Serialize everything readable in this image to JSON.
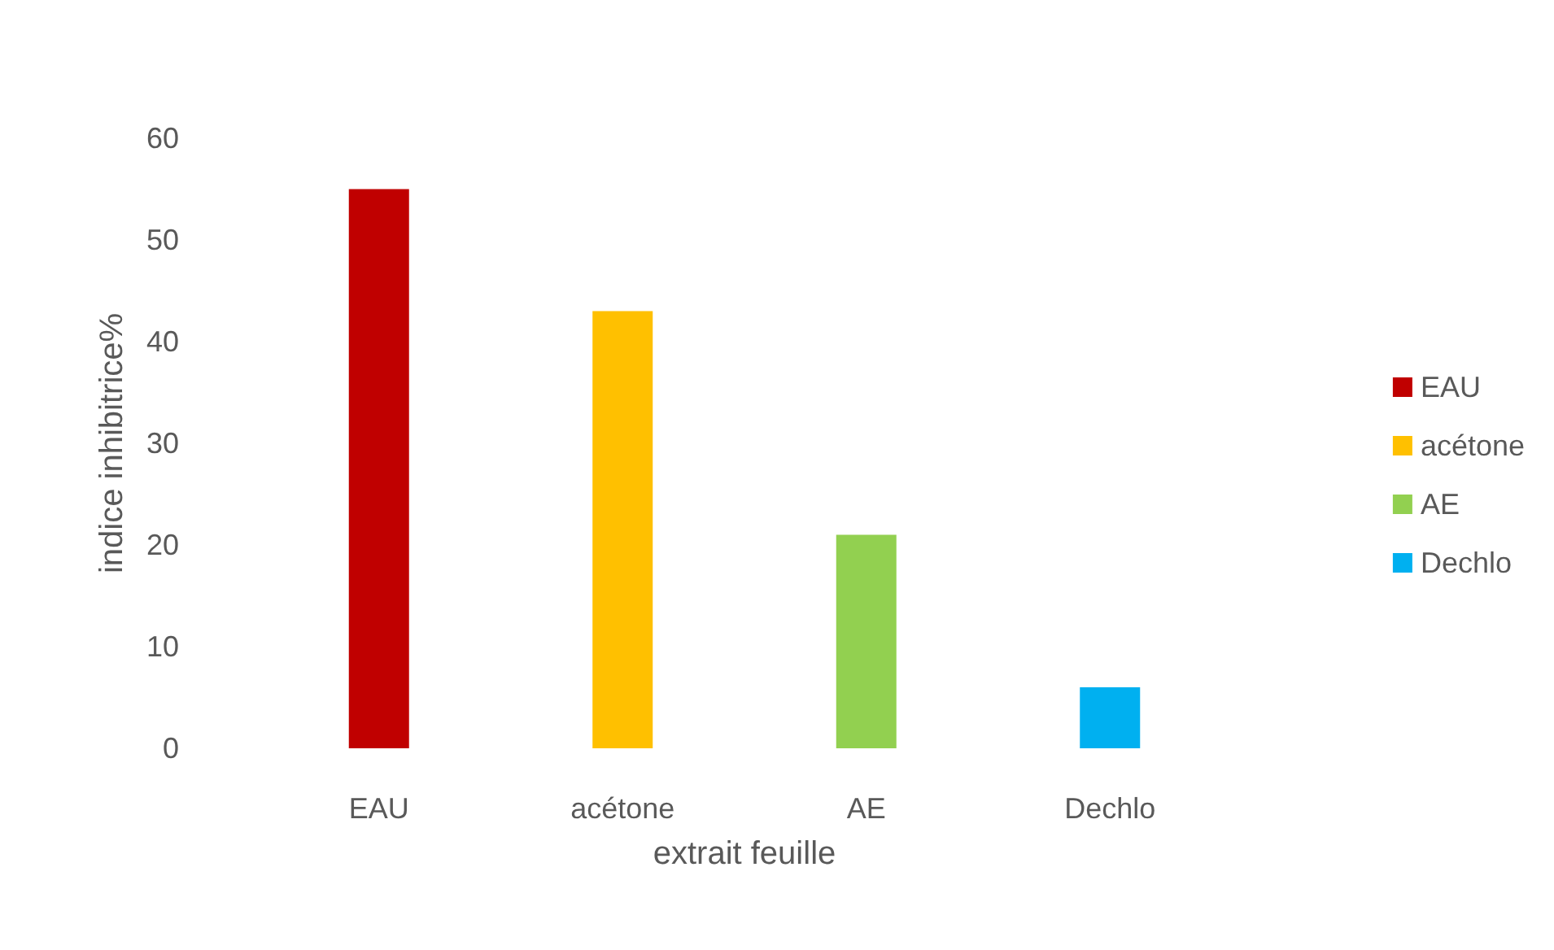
{
  "chart_data": {
    "type": "bar",
    "xlabel": "extrait feuille",
    "ylabel": "indice inhibitrice%",
    "categories": [
      "EAU",
      "acétone",
      "AE",
      "Dechlo"
    ],
    "series": [
      {
        "name": "EAU",
        "color": "#c00000",
        "values": [
          55,
          null,
          null,
          null
        ]
      },
      {
        "name": "acétone",
        "color": "#ffc000",
        "values": [
          null,
          43,
          null,
          null
        ]
      },
      {
        "name": "AE",
        "color": "#92d050",
        "values": [
          null,
          null,
          21,
          null
        ]
      },
      {
        "name": "Dechlo",
        "color": "#00b0f0",
        "values": [
          null,
          null,
          null,
          6
        ]
      }
    ],
    "stacked": true,
    "ylim": [
      0,
      60
    ],
    "yticks": [
      0,
      10,
      20,
      30,
      40,
      50,
      60
    ],
    "grid": false,
    "legend": "right"
  }
}
